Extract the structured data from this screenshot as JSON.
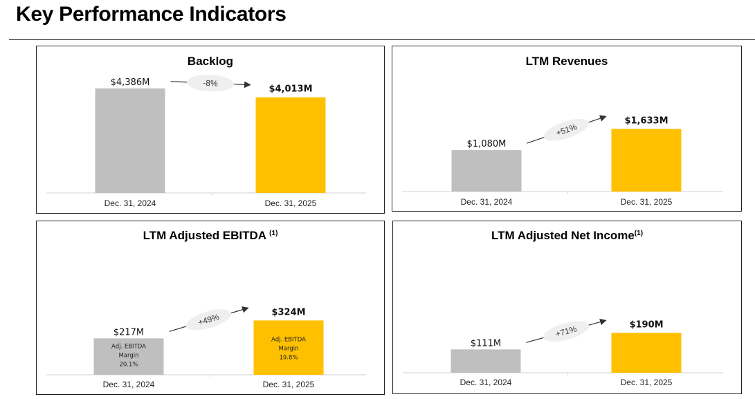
{
  "page": {
    "title": "Key Performance Indicators"
  },
  "colors": {
    "prior_bar": "#bfbfbf",
    "current_bar": "#ffc000",
    "axis": "#d9d9d9",
    "bubble": "#efefef",
    "arrow": "#333333"
  },
  "chart_data": [
    {
      "id": "backlog",
      "type": "bar",
      "title": "Backlog",
      "title_sup": "",
      "categories": [
        "Dec. 31, 2024",
        "Dec. 31, 2025"
      ],
      "values": [
        4386,
        4013
      ],
      "value_labels": [
        "$4,386M",
        "$4,013M"
      ],
      "unit": "$M",
      "change_label": "-8%",
      "inbar_labels": [],
      "ylim": [
        0,
        4700
      ],
      "grid": false,
      "legend": "none"
    },
    {
      "id": "ltm-revenues",
      "type": "bar",
      "title": "LTM Revenues",
      "title_sup": "",
      "categories": [
        "Dec. 31, 2024",
        "Dec. 31, 2025"
      ],
      "values": [
        1080,
        1633
      ],
      "value_labels": [
        "$1,080M",
        "$1,633M"
      ],
      "unit": "$M",
      "change_label": "+51%",
      "inbar_labels": [],
      "ylim": [
        0,
        3100
      ],
      "grid": false,
      "legend": "none"
    },
    {
      "id": "ltm-adjusted-ebitda",
      "type": "bar",
      "title": "LTM Adjusted EBITDA ",
      "title_sup": "(1)",
      "categories": [
        "Dec. 31, 2024",
        "Dec. 31, 2025"
      ],
      "values": [
        217,
        324
      ],
      "value_labels": [
        "$217M",
        "$324M"
      ],
      "unit": "$M",
      "change_label": "+49%",
      "inbar_labels": [
        [
          "Adj. EBITDA",
          "Margin",
          "20.1%"
        ],
        [
          "Adj. EBITDA",
          "Margin",
          "19.8%"
        ]
      ],
      "ylim": [
        0,
        750
      ],
      "grid": false,
      "legend": "none"
    },
    {
      "id": "ltm-adjusted-net-income",
      "type": "bar",
      "title": "LTM Adjusted Net Income",
      "title_sup": "(1)",
      "categories": [
        "Dec. 31, 2024",
        "Dec. 31, 2025"
      ],
      "values": [
        111,
        190
      ],
      "value_labels": [
        "$111M",
        "$190M"
      ],
      "unit": "$M",
      "change_label": "+71%",
      "inbar_labels": [],
      "ylim": [
        0,
        590
      ],
      "grid": false,
      "legend": "none"
    }
  ]
}
